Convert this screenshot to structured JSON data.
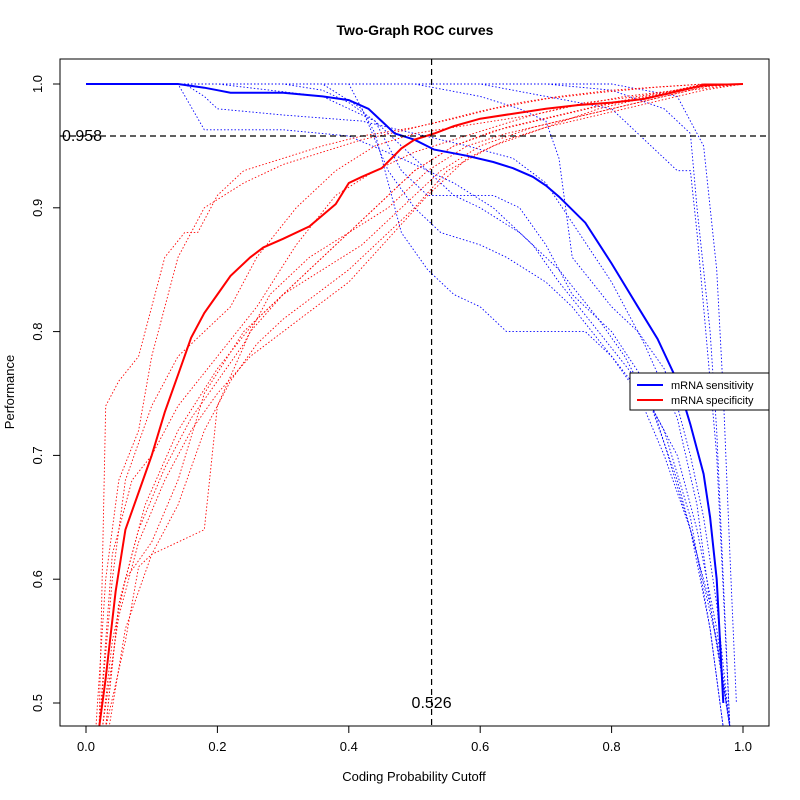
{
  "chart_data": {
    "type": "line",
    "title": "Two-Graph ROC curves",
    "xlabel": "Coding Probability Cutoff",
    "ylabel": "Performance",
    "xlim": [
      0.0,
      1.0
    ],
    "ylim": [
      0.48,
      1.0
    ],
    "x_ticks": [
      0.0,
      0.2,
      0.4,
      0.6,
      0.8,
      1.0
    ],
    "x_tick_labels": [
      "0.0",
      "0.2",
      "0.4",
      "0.6",
      "0.8",
      "1.0"
    ],
    "y_ticks": [
      0.5,
      0.6,
      0.7,
      0.8,
      0.9,
      1.0
    ],
    "y_tick_labels": [
      "0.5",
      "0.6",
      "0.7",
      "0.8",
      "0.9",
      "1.0"
    ],
    "grid": false,
    "legend_position": "right",
    "cutoff_x": 0.526,
    "cutoff_x_label": "0.526",
    "cutoff_y": 0.958,
    "cutoff_y_label": "0.958",
    "colors": {
      "sensitivity": "#0000ff",
      "specificity": "#ff0000"
    },
    "series": [
      {
        "name": "mRNA sensitivity",
        "role": "mean",
        "color": "#0000ff",
        "x": [
          0.0,
          0.14,
          0.18,
          0.2,
          0.22,
          0.3,
          0.36,
          0.4,
          0.43,
          0.44,
          0.47,
          0.5,
          0.53,
          0.58,
          0.62,
          0.65,
          0.68,
          0.7,
          0.72,
          0.76,
          0.8,
          0.84,
          0.87,
          0.9,
          0.92,
          0.94,
          0.95,
          0.96,
          0.97
        ],
        "y": [
          1.0,
          1.0,
          0.997,
          0.995,
          0.993,
          0.993,
          0.99,
          0.987,
          0.98,
          0.975,
          0.96,
          0.955,
          0.947,
          0.942,
          0.937,
          0.932,
          0.925,
          0.918,
          0.909,
          0.888,
          0.855,
          0.82,
          0.794,
          0.76,
          0.725,
          0.685,
          0.65,
          0.6,
          0.5
        ]
      },
      {
        "name": "mRNA specificity",
        "role": "mean",
        "color": "#ff0000",
        "x": [
          0.02,
          0.03,
          0.045,
          0.06,
          0.08,
          0.1,
          0.12,
          0.14,
          0.16,
          0.18,
          0.2,
          0.22,
          0.25,
          0.27,
          0.3,
          0.34,
          0.38,
          0.4,
          0.42,
          0.45,
          0.48,
          0.5,
          0.53,
          0.56,
          0.6,
          0.65,
          0.7,
          0.75,
          0.8,
          0.85,
          0.9,
          0.94,
          1.0
        ],
        "y": [
          0.48,
          0.52,
          0.59,
          0.64,
          0.67,
          0.7,
          0.735,
          0.765,
          0.795,
          0.815,
          0.83,
          0.845,
          0.86,
          0.868,
          0.875,
          0.885,
          0.903,
          0.92,
          0.925,
          0.932,
          0.948,
          0.955,
          0.96,
          0.966,
          0.972,
          0.976,
          0.98,
          0.983,
          0.985,
          0.988,
          0.994,
          0.999,
          1.0
        ]
      }
    ],
    "fold_series": [
      {
        "color": "#0000ff",
        "x": [
          0.0,
          0.15,
          0.18,
          0.2,
          0.3,
          0.42,
          0.5,
          0.58,
          0.65,
          0.7,
          0.75,
          0.8,
          0.85,
          0.9,
          0.93,
          0.95,
          0.97,
          0.98
        ],
        "y": [
          1.0,
          1.0,
          0.99,
          0.98,
          0.975,
          0.97,
          0.96,
          0.95,
          0.94,
          0.92,
          0.88,
          0.84,
          0.79,
          0.73,
          0.66,
          0.58,
          0.52,
          0.48
        ]
      },
      {
        "color": "#0000ff",
        "x": [
          0.0,
          0.14,
          0.18,
          0.22,
          0.3,
          0.4,
          0.48,
          0.56,
          0.62,
          0.68,
          0.72,
          0.78,
          0.84,
          0.88,
          0.92,
          0.95,
          0.97
        ],
        "y": [
          1.0,
          1.0,
          0.963,
          0.963,
          0.963,
          0.958,
          0.94,
          0.92,
          0.9,
          0.87,
          0.84,
          0.8,
          0.76,
          0.72,
          0.65,
          0.56,
          0.48
        ]
      },
      {
        "color": "#0000ff",
        "x": [
          0.0,
          0.3,
          0.36,
          0.4,
          0.44,
          0.48,
          0.52,
          0.56,
          0.6,
          0.66,
          0.72,
          0.78,
          0.82,
          0.86,
          0.9,
          0.93,
          0.96,
          0.98
        ],
        "y": [
          1.0,
          1.0,
          0.995,
          0.985,
          0.97,
          0.95,
          0.93,
          0.91,
          0.9,
          0.88,
          0.85,
          0.81,
          0.78,
          0.74,
          0.68,
          0.62,
          0.55,
          0.48
        ]
      },
      {
        "color": "#0000ff",
        "x": [
          0.0,
          0.2,
          0.36,
          0.44,
          0.48,
          0.52,
          0.58,
          0.62,
          0.66,
          0.7,
          0.74,
          0.8,
          0.85,
          0.88,
          0.92,
          0.95,
          0.97
        ],
        "y": [
          1.0,
          1.0,
          0.99,
          0.97,
          0.93,
          0.91,
          0.91,
          0.91,
          0.9,
          0.87,
          0.83,
          0.8,
          0.76,
          0.71,
          0.64,
          0.56,
          0.48
        ]
      },
      {
        "color": "#0000ff",
        "x": [
          0.0,
          0.36,
          0.42,
          0.46,
          0.5,
          0.54,
          0.6,
          0.64,
          0.7,
          0.74,
          0.8,
          0.86,
          0.9,
          0.93,
          0.96,
          0.98
        ],
        "y": [
          1.0,
          1.0,
          0.98,
          0.93,
          0.9,
          0.88,
          0.87,
          0.86,
          0.84,
          0.82,
          0.78,
          0.74,
          0.7,
          0.64,
          0.56,
          0.48
        ]
      },
      {
        "color": "#0000ff",
        "x": [
          0.0,
          0.4,
          0.44,
          0.48,
          0.52,
          0.56,
          0.6,
          0.64,
          0.68,
          0.72,
          0.76,
          0.8,
          0.84,
          0.88,
          0.92,
          0.95,
          0.98
        ],
        "y": [
          1.0,
          1.0,
          0.96,
          0.88,
          0.85,
          0.83,
          0.82,
          0.8,
          0.8,
          0.8,
          0.8,
          0.78,
          0.75,
          0.7,
          0.64,
          0.58,
          0.48
        ]
      },
      {
        "color": "#0000ff",
        "x": [
          0.0,
          0.5,
          0.6,
          0.66,
          0.7,
          0.72,
          0.74,
          0.8,
          0.84,
          0.88,
          0.9,
          0.92,
          0.94,
          0.96,
          0.98
        ],
        "y": [
          1.0,
          1.0,
          0.99,
          0.98,
          0.97,
          0.94,
          0.86,
          0.82,
          0.8,
          0.77,
          0.74,
          0.7,
          0.65,
          0.58,
          0.48
        ]
      },
      {
        "color": "#0000ff",
        "x": [
          0.0,
          0.6,
          0.7,
          0.8,
          0.86,
          0.9,
          0.92,
          0.93,
          0.94,
          0.96,
          0.98
        ],
        "y": [
          1.0,
          1.0,
          0.99,
          0.98,
          0.95,
          0.93,
          0.93,
          0.88,
          0.82,
          0.7,
          0.48
        ]
      },
      {
        "color": "#0000ff",
        "x": [
          0.0,
          0.7,
          0.8,
          0.88,
          0.92,
          0.93,
          0.94,
          0.95,
          0.96,
          0.97,
          0.98
        ],
        "y": [
          1.0,
          1.0,
          0.995,
          0.98,
          0.96,
          0.9,
          0.85,
          0.8,
          0.72,
          0.6,
          0.48
        ]
      },
      {
        "color": "#0000ff",
        "x": [
          0.0,
          0.8,
          0.9,
          0.94,
          0.96,
          0.97,
          0.98,
          0.99
        ],
        "y": [
          1.0,
          1.0,
          0.99,
          0.95,
          0.85,
          0.75,
          0.62,
          0.5
        ]
      },
      {
        "color": "#ff0000",
        "x": [
          0.015,
          0.03,
          0.05,
          0.08,
          0.1,
          0.14,
          0.18,
          0.24,
          0.3,
          0.36,
          0.42,
          0.48,
          0.54,
          0.6,
          0.66,
          0.72,
          0.8,
          0.88,
          0.94,
          1.0
        ],
        "y": [
          0.48,
          0.6,
          0.68,
          0.72,
          0.78,
          0.86,
          0.9,
          0.92,
          0.935,
          0.945,
          0.955,
          0.962,
          0.97,
          0.978,
          0.985,
          0.99,
          0.995,
          0.998,
          1.0,
          1.0
        ]
      },
      {
        "color": "#ff0000",
        "x": [
          0.02,
          0.03,
          0.05,
          0.08,
          0.12,
          0.15,
          0.17,
          0.2,
          0.24,
          0.3,
          0.36,
          0.42,
          0.5,
          0.56,
          0.62,
          0.7,
          0.78,
          0.86,
          0.94,
          1.0
        ],
        "y": [
          0.48,
          0.74,
          0.76,
          0.78,
          0.86,
          0.88,
          0.88,
          0.91,
          0.93,
          0.94,
          0.95,
          0.958,
          0.965,
          0.972,
          0.98,
          0.988,
          0.993,
          0.997,
          1.0,
          1.0
        ]
      },
      {
        "color": "#ff0000",
        "x": [
          0.02,
          0.04,
          0.06,
          0.1,
          0.14,
          0.18,
          0.22,
          0.26,
          0.32,
          0.38,
          0.44,
          0.5,
          0.56,
          0.62,
          0.68,
          0.74,
          0.82,
          0.9,
          0.96,
          1.0
        ],
        "y": [
          0.48,
          0.6,
          0.68,
          0.74,
          0.78,
          0.8,
          0.82,
          0.86,
          0.9,
          0.93,
          0.95,
          0.96,
          0.965,
          0.97,
          0.975,
          0.982,
          0.99,
          0.995,
          1.0,
          1.0
        ]
      },
      {
        "color": "#ff0000",
        "x": [
          0.025,
          0.04,
          0.06,
          0.1,
          0.14,
          0.18,
          0.24,
          0.3,
          0.36,
          0.4,
          0.44,
          0.5,
          0.56,
          0.64,
          0.72,
          0.8,
          0.88,
          0.94,
          1.0
        ],
        "y": [
          0.48,
          0.55,
          0.6,
          0.63,
          0.68,
          0.75,
          0.8,
          0.83,
          0.86,
          0.88,
          0.9,
          0.93,
          0.95,
          0.965,
          0.975,
          0.985,
          0.993,
          1.0,
          1.0
        ]
      },
      {
        "color": "#ff0000",
        "x": [
          0.03,
          0.05,
          0.08,
          0.12,
          0.16,
          0.2,
          0.24,
          0.28,
          0.34,
          0.4,
          0.46,
          0.52,
          0.58,
          0.64,
          0.72,
          0.8,
          0.88,
          0.96,
          1.0
        ],
        "y": [
          0.48,
          0.58,
          0.64,
          0.69,
          0.73,
          0.76,
          0.79,
          0.83,
          0.86,
          0.88,
          0.9,
          0.93,
          0.95,
          0.96,
          0.97,
          0.98,
          0.99,
          1.0,
          1.0
        ]
      },
      {
        "color": "#ff0000",
        "x": [
          0.03,
          0.06,
          0.08,
          0.1,
          0.14,
          0.18,
          0.2,
          0.25,
          0.3,
          0.36,
          0.42,
          0.48,
          0.54,
          0.6,
          0.68,
          0.76,
          0.84,
          0.92,
          1.0
        ],
        "y": [
          0.48,
          0.55,
          0.61,
          0.62,
          0.63,
          0.64,
          0.74,
          0.8,
          0.83,
          0.85,
          0.87,
          0.9,
          0.93,
          0.95,
          0.965,
          0.975,
          0.985,
          0.995,
          1.0
        ]
      },
      {
        "color": "#ff0000",
        "x": [
          0.035,
          0.06,
          0.1,
          0.14,
          0.18,
          0.22,
          0.26,
          0.3,
          0.35,
          0.4,
          0.45,
          0.5,
          0.55,
          0.62,
          0.7,
          0.78,
          0.86,
          0.94,
          1.0
        ],
        "y": [
          0.48,
          0.56,
          0.62,
          0.66,
          0.72,
          0.76,
          0.79,
          0.81,
          0.83,
          0.85,
          0.875,
          0.9,
          0.93,
          0.95,
          0.965,
          0.98,
          0.99,
          1.0,
          1.0
        ]
      },
      {
        "color": "#ff0000",
        "x": [
          0.025,
          0.05,
          0.08,
          0.12,
          0.16,
          0.2,
          0.25,
          0.3,
          0.35,
          0.4,
          0.46,
          0.52,
          0.58,
          0.64,
          0.7,
          0.78,
          0.86,
          0.94,
          1.0
        ],
        "y": [
          0.48,
          0.57,
          0.63,
          0.68,
          0.72,
          0.75,
          0.78,
          0.8,
          0.82,
          0.84,
          0.875,
          0.91,
          0.94,
          0.955,
          0.965,
          0.975,
          0.985,
          0.995,
          1.0
        ]
      },
      {
        "color": "#ff0000",
        "x": [
          0.02,
          0.04,
          0.07,
          0.1,
          0.14,
          0.2,
          0.26,
          0.32,
          0.38,
          0.44,
          0.5,
          0.56,
          0.62,
          0.68,
          0.76,
          0.84,
          0.92,
          1.0
        ],
        "y": [
          0.48,
          0.62,
          0.68,
          0.7,
          0.74,
          0.78,
          0.82,
          0.87,
          0.91,
          0.93,
          0.945,
          0.955,
          0.965,
          0.975,
          0.985,
          0.99,
          0.997,
          1.0
        ]
      },
      {
        "color": "#ff0000",
        "x": [
          0.03,
          0.05,
          0.09,
          0.14,
          0.2,
          0.26,
          0.32,
          0.38,
          0.44,
          0.5,
          0.56,
          0.62,
          0.7,
          0.78,
          0.86,
          0.94,
          1.0
        ],
        "y": [
          0.48,
          0.58,
          0.66,
          0.72,
          0.77,
          0.81,
          0.84,
          0.87,
          0.9,
          0.93,
          0.95,
          0.962,
          0.972,
          0.982,
          0.99,
          0.998,
          1.0
        ]
      }
    ],
    "legend": [
      {
        "label": "mRNA sensitivity",
        "color": "#0000ff"
      },
      {
        "label": "mRNA specificity",
        "color": "#ff0000"
      }
    ]
  }
}
